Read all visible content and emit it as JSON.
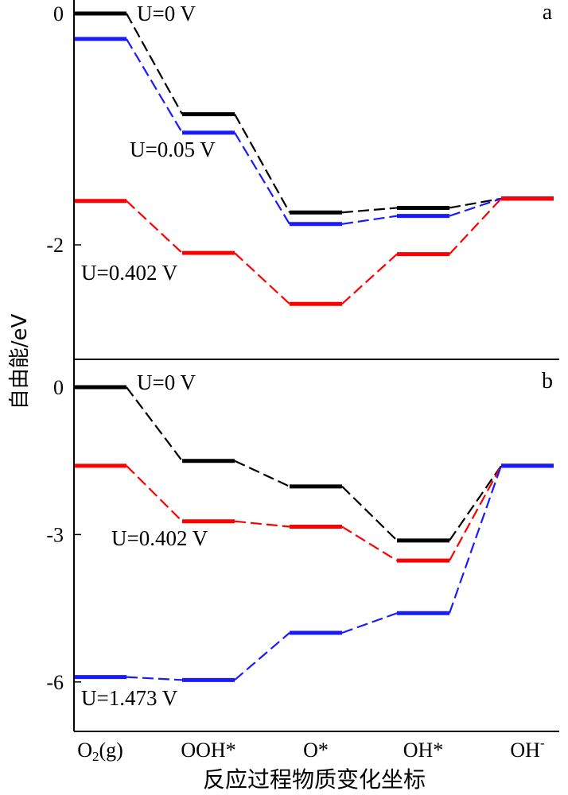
{
  "chart_data": [
    {
      "type": "line",
      "panel_label": "a",
      "categories": [
        "O2(g)",
        "OOH*",
        "O*",
        "OH*",
        "OH-"
      ],
      "yticks": [
        0,
        -2
      ],
      "ylim": [
        -3.0,
        0.1
      ],
      "colors": {
        "U=0 V": "#000000",
        "U=0.05 V": "#1a1aff",
        "U=0.402 V": "#ff0000"
      },
      "series": [
        {
          "name": "U=0 V",
          "color": "#000000",
          "values": [
            0.0,
            -0.87,
            -1.72,
            -1.68,
            -1.6
          ]
        },
        {
          "name": "U=0.05 V",
          "color": "#1a1aff",
          "values": [
            -0.22,
            -1.03,
            -1.82,
            -1.75,
            -1.6
          ]
        },
        {
          "name": "U=0.402 V",
          "color": "#ff0000",
          "values": [
            -1.62,
            -2.07,
            -2.51,
            -2.08,
            -1.6
          ]
        }
      ],
      "legend_labels": [
        "U=0 V",
        "U=0.05 V",
        "U=0.402 V"
      ]
    },
    {
      "type": "line",
      "panel_label": "b",
      "categories": [
        "O2(g)",
        "OOH*",
        "O*",
        "OH*",
        "OH-"
      ],
      "yticks": [
        0,
        -3,
        -6
      ],
      "ylim": [
        -7.0,
        0.3
      ],
      "colors": {
        "U=0 V": "#000000",
        "U=0.402 V": "#ff0000",
        "U=1.473 V": "#1a1aff"
      },
      "series": [
        {
          "name": "U=0 V",
          "color": "#000000",
          "values": [
            0.0,
            -1.5,
            -2.02,
            -3.12,
            -1.6
          ]
        },
        {
          "name": "U=0.402 V",
          "color": "#ff0000",
          "values": [
            -1.6,
            -2.73,
            -2.84,
            -3.53,
            -1.6
          ]
        },
        {
          "name": "U=1.473 V",
          "color": "#1a1aff",
          "values": [
            -5.9,
            -5.96,
            -5.0,
            -4.6,
            -1.6
          ]
        }
      ],
      "legend_labels": [
        "U=0 V",
        "U=0.402 V",
        "U=1.473 V"
      ]
    }
  ],
  "axes": {
    "ylabel": "自由能/eV",
    "xlabel": "反应过程物质变化坐标",
    "x_tick_labels": [
      {
        "main": "O",
        "sub": "2",
        "tail": "(g)"
      },
      {
        "main": "OOH*",
        "sub": "",
        "tail": ""
      },
      {
        "main": "O*",
        "sub": "",
        "tail": ""
      },
      {
        "main": "OH*",
        "sub": "",
        "tail": ""
      },
      {
        "main": "OH",
        "sub": "",
        "tail": "-"
      }
    ]
  }
}
